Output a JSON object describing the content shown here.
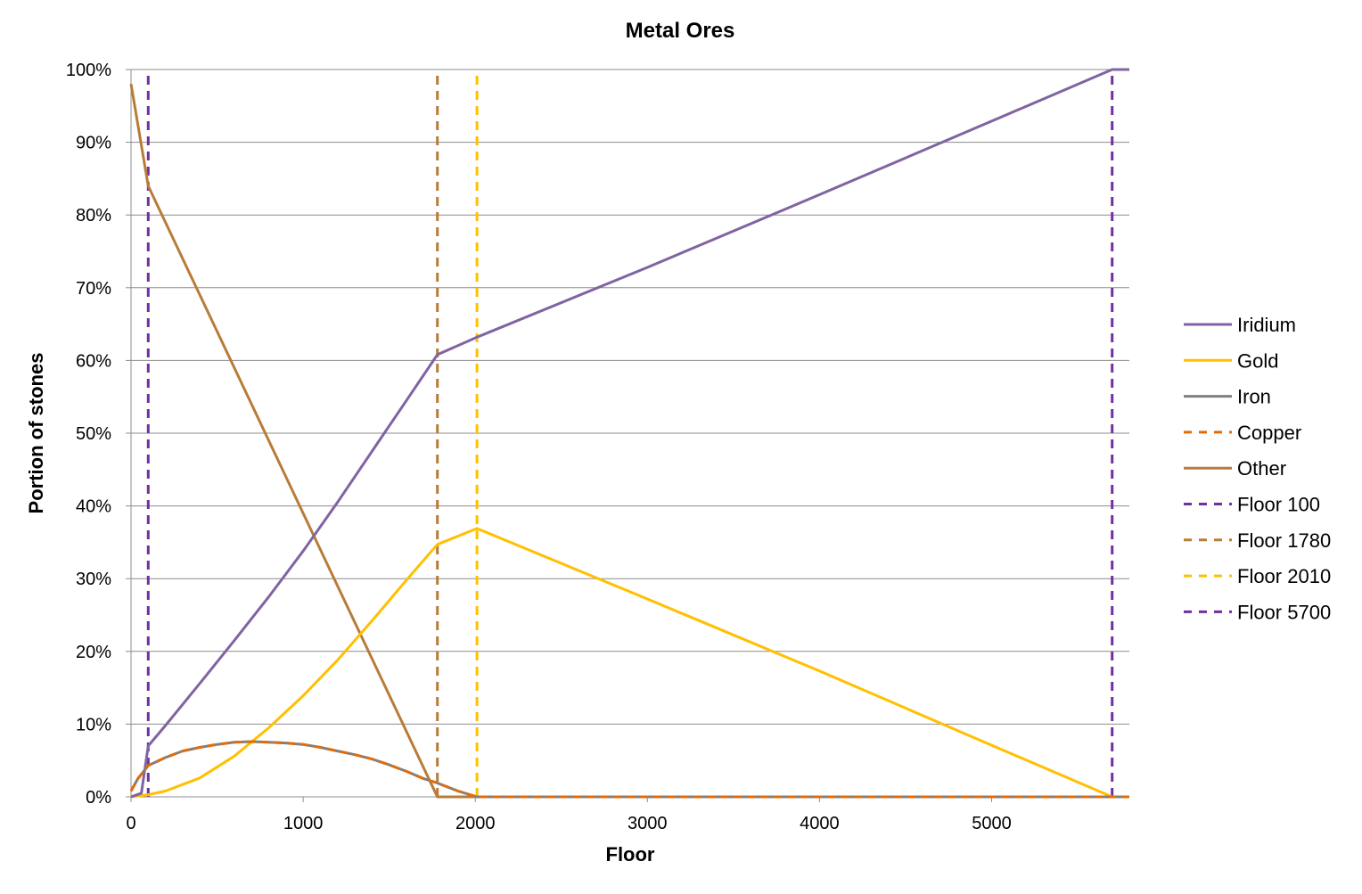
{
  "chart_data": {
    "type": "line",
    "title": "Metal Ores",
    "xlabel": "Floor",
    "ylabel": "Portion of stones",
    "xlim": [
      0,
      5800
    ],
    "ylim": [
      0,
      100
    ],
    "x_ticks": [
      0,
      1000,
      2000,
      3000,
      4000,
      5000
    ],
    "x_tick_labels": [
      "0",
      "1000",
      "2000",
      "3000",
      "4000",
      "5000"
    ],
    "y_ticks": [
      0,
      10,
      20,
      30,
      40,
      50,
      60,
      70,
      80,
      90,
      100
    ],
    "y_tick_labels": [
      "0%",
      "10%",
      "20%",
      "30%",
      "40%",
      "50%",
      "60%",
      "70%",
      "80%",
      "90%",
      "100%"
    ],
    "grid": "horizontal",
    "legend_position": "right",
    "series": [
      {
        "name": "Iridium",
        "color": "#8064a2",
        "style": "solid",
        "x": [
          0,
          60,
          100,
          200,
          400,
          600,
          800,
          1000,
          1200,
          1400,
          1600,
          1780,
          2010,
          3000,
          4000,
          5000,
          5700,
          5800
        ],
        "y": [
          0,
          0.5,
          7.0,
          9.8,
          15.6,
          21.5,
          27.5,
          33.8,
          40.5,
          47.5,
          54.5,
          60.8,
          63.2,
          72.8,
          82.8,
          92.9,
          100,
          100
        ]
      },
      {
        "name": "Gold",
        "color": "#ffc000",
        "style": "solid",
        "x": [
          0,
          100,
          200,
          400,
          600,
          800,
          1000,
          1200,
          1400,
          1600,
          1780,
          2010,
          3000,
          4000,
          5000,
          5700,
          5800
        ],
        "y": [
          0,
          0.3,
          0.8,
          2.6,
          5.6,
          9.5,
          13.9,
          18.8,
          24.2,
          29.8,
          34.7,
          36.9,
          27.2,
          17.3,
          7.1,
          0,
          0
        ]
      },
      {
        "name": "Iron",
        "color": "#808080",
        "style": "solid",
        "x": [
          0,
          40,
          100,
          200,
          300,
          400,
          500,
          600,
          700,
          800,
          900,
          1000,
          1100,
          1200,
          1300,
          1400,
          1500,
          1600,
          1700,
          1780,
          1900,
          2010,
          3000,
          5800
        ],
        "y": [
          0.8,
          2.5,
          4.3,
          5.4,
          6.3,
          6.8,
          7.2,
          7.5,
          7.6,
          7.5,
          7.4,
          7.2,
          6.8,
          6.3,
          5.8,
          5.2,
          4.4,
          3.5,
          2.5,
          1.9,
          0.8,
          0,
          0,
          0
        ]
      },
      {
        "name": "Copper",
        "color": "#e36c0a",
        "style": "dashed",
        "x": [
          0,
          40,
          100,
          200,
          300,
          400,
          500,
          600,
          700,
          800,
          900,
          1000,
          1100,
          1200,
          1300,
          1400,
          1500,
          1600,
          1700,
          1780,
          1900,
          2010,
          3000,
          5800
        ],
        "y": [
          0.8,
          2.5,
          4.3,
          5.4,
          6.3,
          6.8,
          7.2,
          7.5,
          7.6,
          7.5,
          7.4,
          7.2,
          6.8,
          6.3,
          5.8,
          5.2,
          4.4,
          3.5,
          2.5,
          1.9,
          0.8,
          0,
          0,
          0
        ]
      },
      {
        "name": "Other",
        "color": "#b87c3a",
        "style": "solid",
        "x": [
          0,
          100,
          1780,
          2010,
          5800
        ],
        "y": [
          98,
          84,
          0,
          0,
          0
        ]
      },
      {
        "name": "Floor 100",
        "color": "#7030a0",
        "style": "dashed",
        "x": [
          100,
          100
        ],
        "y": [
          0,
          100
        ]
      },
      {
        "name": "Floor 1780",
        "color": "#b87c3a",
        "style": "dashed",
        "x": [
          1780,
          1780
        ],
        "y": [
          0,
          100
        ]
      },
      {
        "name": "Floor 2010",
        "color": "#ffc000",
        "style": "dashed",
        "x": [
          2010,
          2010
        ],
        "y": [
          0,
          100
        ]
      },
      {
        "name": "Floor 5700",
        "color": "#7030a0",
        "style": "dashed",
        "x": [
          5700,
          5700
        ],
        "y": [
          0,
          100
        ]
      }
    ]
  }
}
